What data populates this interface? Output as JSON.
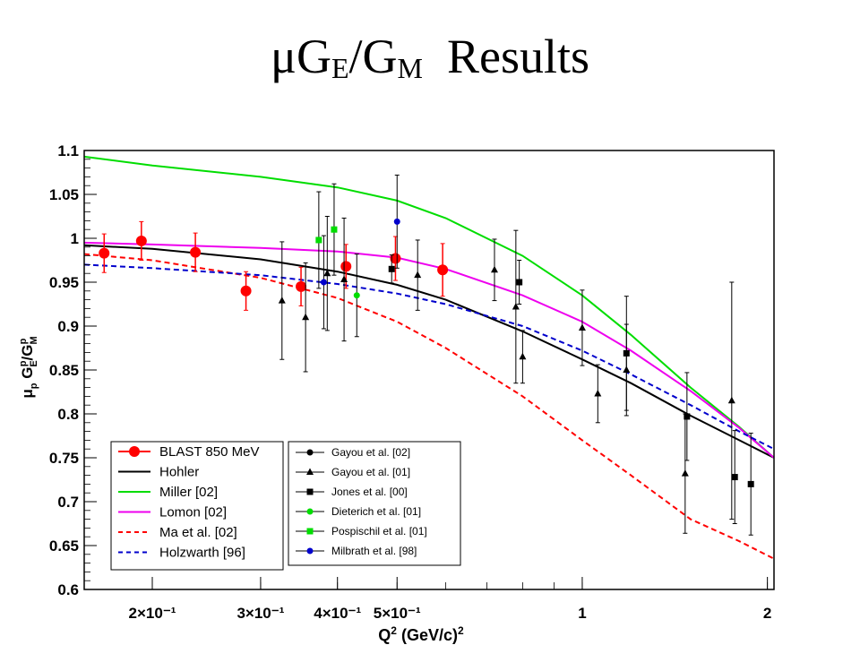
{
  "title": {
    "main": "μG",
    "sub_e": "E",
    "slash": "/G",
    "sub_m": "M",
    "suffix": "Results"
  },
  "chart_data": {
    "type": "scatter",
    "x_scale": "log",
    "xlim": [
      0.155,
      2.05
    ],
    "ylim": [
      0.6,
      1.1
    ],
    "grid": false,
    "xlabel": "Q² (GeV/c)²",
    "ylabel": "μp GEp/GMp",
    "x_ticks": [
      {
        "value": 0.2,
        "label": "2×10⁻¹"
      },
      {
        "value": 0.3,
        "label": "3×10⁻¹"
      },
      {
        "value": 0.4,
        "label": "4×10⁻¹"
      },
      {
        "value": 0.5,
        "label": "5×10⁻¹"
      },
      {
        "value": 1,
        "label": "1"
      },
      {
        "value": 2,
        "label": "2"
      }
    ],
    "y_ticks": [
      {
        "value": 0.6,
        "label": "0.6"
      },
      {
        "value": 0.65,
        "label": "0.65"
      },
      {
        "value": 0.7,
        "label": "0.7"
      },
      {
        "value": 0.75,
        "label": "0.75"
      },
      {
        "value": 0.8,
        "label": "0.8"
      },
      {
        "value": 0.85,
        "label": "0.85"
      },
      {
        "value": 0.9,
        "label": "0.9"
      },
      {
        "value": 0.95,
        "label": "0.95"
      },
      {
        "value": 1,
        "label": "1"
      },
      {
        "value": 1.05,
        "label": "1.05"
      },
      {
        "value": 1.1,
        "label": "1.1"
      }
    ],
    "legend_left_placement": "bottom-left",
    "legend_right_placement": "bottom-center",
    "curves": [
      {
        "name": "Hohler",
        "color": "#000000",
        "dash": "solid",
        "x": [
          0.155,
          0.2,
          0.3,
          0.4,
          0.5,
          0.6,
          0.8,
          1.0,
          1.2,
          1.5,
          1.8,
          2.05
        ],
        "y": [
          0.992,
          0.988,
          0.976,
          0.962,
          0.947,
          0.93,
          0.894,
          0.862,
          0.835,
          0.798,
          0.77,
          0.75
        ]
      },
      {
        "name": "Miller [02]",
        "color": "#00dd00",
        "dash": "solid",
        "x": [
          0.155,
          0.2,
          0.3,
          0.4,
          0.5,
          0.6,
          0.8,
          1.0,
          1.2,
          1.5,
          1.8,
          2.05
        ],
        "y": [
          1.093,
          1.083,
          1.07,
          1.058,
          1.043,
          1.023,
          0.98,
          0.935,
          0.89,
          0.83,
          0.785,
          0.75
        ]
      },
      {
        "name": "Lomon [02]",
        "color": "#ee00ee",
        "dash": "solid",
        "x": [
          0.155,
          0.2,
          0.3,
          0.4,
          0.5,
          0.6,
          0.8,
          1.0,
          1.2,
          1.5,
          1.8,
          2.05
        ],
        "y": [
          0.995,
          0.993,
          0.989,
          0.985,
          0.978,
          0.965,
          0.935,
          0.905,
          0.872,
          0.826,
          0.784,
          0.75
        ]
      },
      {
        "name": "Ma et al. [02]",
        "color": "#ff0000",
        "dash": "dashed",
        "x": [
          0.155,
          0.2,
          0.3,
          0.4,
          0.5,
          0.6,
          0.8,
          1.0,
          1.2,
          1.5,
          1.8,
          2.05
        ],
        "y": [
          0.982,
          0.975,
          0.955,
          0.932,
          0.905,
          0.875,
          0.82,
          0.77,
          0.73,
          0.68,
          0.655,
          0.635
        ]
      },
      {
        "name": "Holzwarth [96]",
        "color": "#0000cc",
        "dash": "dashed",
        "x": [
          0.155,
          0.2,
          0.3,
          0.4,
          0.5,
          0.6,
          0.8,
          1.0,
          1.2,
          1.5,
          1.8,
          2.05
        ],
        "y": [
          0.97,
          0.966,
          0.958,
          0.948,
          0.937,
          0.925,
          0.9,
          0.872,
          0.845,
          0.81,
          0.78,
          0.76
        ]
      }
    ],
    "series": [
      {
        "name": "BLAST 850 MeV",
        "marker": "circle-large",
        "color": "#ff0000",
        "points": [
          {
            "x": 0.167,
            "y": 0.983,
            "err": 0.022
          },
          {
            "x": 0.192,
            "y": 0.997,
            "err": 0.022
          },
          {
            "x": 0.235,
            "y": 0.984,
            "err": 0.022
          },
          {
            "x": 0.284,
            "y": 0.94,
            "err": 0.022
          },
          {
            "x": 0.349,
            "y": 0.945,
            "err": 0.022
          },
          {
            "x": 0.413,
            "y": 0.968,
            "err": 0.025
          },
          {
            "x": 0.497,
            "y": 0.977,
            "err": 0.025
          },
          {
            "x": 0.593,
            "y": 0.964,
            "err": 0.03
          }
        ]
      },
      {
        "name": "Gayou et al. [02]",
        "marker": "circle",
        "color": "#000000",
        "points": []
      },
      {
        "name": "Gayou et al. [01]",
        "marker": "triangle",
        "color": "#000000",
        "points": [
          {
            "x": 0.325,
            "y": 0.929,
            "err": 0.067
          },
          {
            "x": 0.355,
            "y": 0.91,
            "err": 0.062
          },
          {
            "x": 0.385,
            "y": 0.96,
            "err": 0.065
          },
          {
            "x": 0.41,
            "y": 0.953,
            "err": 0.07
          },
          {
            "x": 0.54,
            "y": 0.958,
            "err": 0.04
          },
          {
            "x": 0.72,
            "y": 0.964,
            "err": 0.035
          },
          {
            "x": 0.78,
            "y": 0.922,
            "err": 0.087
          },
          {
            "x": 0.8,
            "y": 0.865,
            "err": 0.03
          },
          {
            "x": 1.0,
            "y": 0.898,
            "err": 0.043
          },
          {
            "x": 1.06,
            "y": 0.823,
            "err": 0.033
          },
          {
            "x": 1.18,
            "y": 0.85,
            "err": 0.052
          },
          {
            "x": 1.47,
            "y": 0.732,
            "err": 0.068
          },
          {
            "x": 1.75,
            "y": 0.815,
            "err": 0.135
          }
        ]
      },
      {
        "name": "Jones et al. [00]",
        "marker": "square",
        "color": "#000000",
        "points": [
          {
            "x": 0.49,
            "y": 0.965,
            "err": 0.016
          },
          {
            "x": 0.79,
            "y": 0.95,
            "err": 0.025
          },
          {
            "x": 1.18,
            "y": 0.869,
            "err": 0.065
          },
          {
            "x": 1.48,
            "y": 0.797,
            "err": 0.05
          },
          {
            "x": 1.77,
            "y": 0.728,
            "err": 0.053
          },
          {
            "x": 1.88,
            "y": 0.72,
            "err": 0.058
          }
        ]
      },
      {
        "name": "Dieterich et al. [01]",
        "marker": "circle",
        "color": "#00dd00",
        "points": [
          {
            "x": 0.43,
            "y": 0.935,
            "err": 0.047
          }
        ]
      },
      {
        "name": "Pospischil et al. [01]",
        "marker": "square",
        "color": "#00dd00",
        "points": [
          {
            "x": 0.373,
            "y": 0.998,
            "err": 0.055
          },
          {
            "x": 0.395,
            "y": 1.01,
            "err": 0.052
          }
        ]
      },
      {
        "name": "Milbrath et al. [98]",
        "marker": "circle",
        "color": "#0000cc",
        "points": [
          {
            "x": 0.38,
            "y": 0.95,
            "err": 0.053
          },
          {
            "x": 0.5,
            "y": 1.019,
            "err": 0.053
          }
        ]
      }
    ],
    "legend_left": [
      {
        "label": "BLAST 850 MeV",
        "kind": "marker",
        "marker": "circle-large",
        "color": "#ff0000"
      },
      {
        "label": "Hohler",
        "kind": "line",
        "color": "#000000",
        "dash": "solid"
      },
      {
        "label": "Miller [02]",
        "kind": "line",
        "color": "#00dd00",
        "dash": "solid"
      },
      {
        "label": "Lomon [02]",
        "kind": "line",
        "color": "#ee00ee",
        "dash": "solid"
      },
      {
        "label": "Ma et al. [02]",
        "kind": "line",
        "color": "#ff0000",
        "dash": "dashed"
      },
      {
        "label": "Holzwarth [96]",
        "kind": "line",
        "color": "#0000cc",
        "dash": "dashed"
      }
    ],
    "legend_right": [
      {
        "label": "Gayou et al. [02]",
        "marker": "circle",
        "color": "#000000"
      },
      {
        "label": "Gayou et al. [01]",
        "marker": "triangle",
        "color": "#000000"
      },
      {
        "label": "Jones et al. [00]",
        "marker": "square",
        "color": "#000000"
      },
      {
        "label": "Dieterich et al. [01]",
        "marker": "circle",
        "color": "#00dd00"
      },
      {
        "label": "Pospischil et al. [01]",
        "marker": "square",
        "color": "#00dd00"
      },
      {
        "label": "Milbrath et al. [98]",
        "marker": "circle",
        "color": "#0000cc"
      }
    ]
  }
}
